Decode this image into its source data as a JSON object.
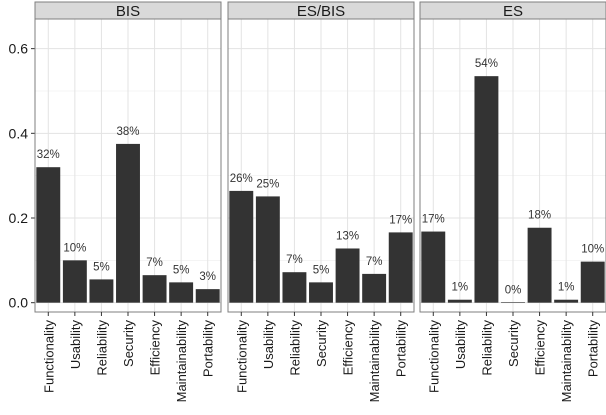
{
  "chart_data": {
    "type": "bar",
    "facets": [
      {
        "title": "BIS",
        "categories": [
          "Functionality",
          "Usability",
          "Reliability",
          "Security",
          "Efficiency",
          "Maintainability",
          "Portability"
        ],
        "values": [
          0.32,
          0.1,
          0.055,
          0.375,
          0.065,
          0.048,
          0.032
        ],
        "labels": [
          "32%",
          "10%",
          "5%",
          "38%",
          "7%",
          "5%",
          "3%"
        ]
      },
      {
        "title": "ES/BIS",
        "categories": [
          "Functionality",
          "Usability",
          "Reliability",
          "Security",
          "Efficiency",
          "Maintainability",
          "Portability"
        ],
        "values": [
          0.264,
          0.251,
          0.072,
          0.048,
          0.128,
          0.068,
          0.166
        ],
        "labels": [
          "26%",
          "25%",
          "7%",
          "5%",
          "13%",
          "7%",
          "17%"
        ]
      },
      {
        "title": "ES",
        "categories": [
          "Functionality",
          "Usability",
          "Reliability",
          "Security",
          "Efficiency",
          "Maintainability",
          "Portability"
        ],
        "values": [
          0.168,
          0.007,
          0.535,
          0.0,
          0.177,
          0.007,
          0.097
        ],
        "labels": [
          "17%",
          "1%",
          "54%",
          "0%",
          "18%",
          "1%",
          "10%"
        ]
      }
    ],
    "y_ticks": [
      "0.0",
      "0.2",
      "0.4",
      "0.6"
    ],
    "y_tick_values": [
      0,
      0.2,
      0.4,
      0.6
    ],
    "ylim": [
      -0.022,
      0.67
    ],
    "xlabel": "",
    "ylabel": "",
    "grid": true,
    "legend": "none",
    "colors": {
      "bar": "#333333",
      "strip": "#d9d9d9"
    }
  }
}
